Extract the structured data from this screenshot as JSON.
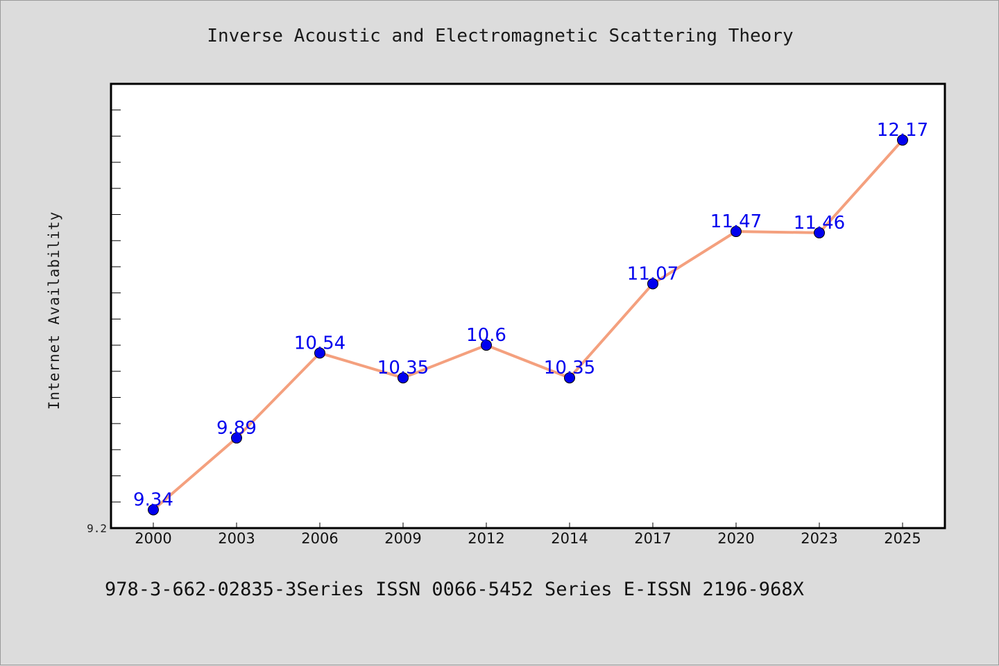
{
  "chart_data": {
    "type": "line",
    "title": "Inverse Acoustic and Electromagnetic Scattering Theory",
    "xlabel": "",
    "ylabel": "Internet Availability",
    "categories": [
      "2000",
      "2003",
      "2006",
      "2009",
      "2012",
      "2014",
      "2017",
      "2020",
      "2023",
      "2025"
    ],
    "series": [
      {
        "values": [
          9.34,
          9.89,
          10.54,
          10.35,
          10.6,
          10.35,
          11.07,
          11.47,
          11.46,
          12.17
        ]
      }
    ],
    "data_labels": [
      "9.34",
      "9.89",
      "10.54",
      "10.35",
      "10.6",
      "10.35",
      "11.07",
      "11.47",
      "11.46",
      "12.17"
    ],
    "y_tick_labels": [
      "9.2"
    ],
    "ylim": [
      9.2,
      12.6
    ],
    "grid": false,
    "legend": "none",
    "colors": {
      "line": "#f4a07e",
      "marker": "#0000ee",
      "label": "#0000ee",
      "axis": "#000000",
      "plot_bg": "#ffffff",
      "page_bg": "#dcdcdc"
    }
  },
  "footer": {
    "text": "978-3-662-02835-3Series ISSN 0066-5452 Series E-ISSN 2196-968X"
  }
}
